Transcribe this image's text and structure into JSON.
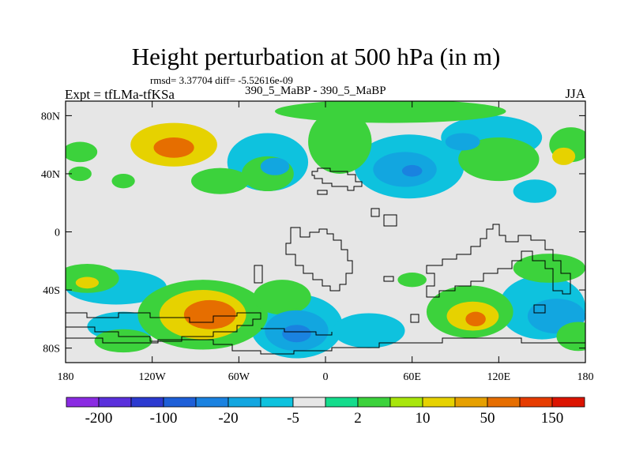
{
  "chart_data": {
    "type": "heatmap",
    "title": "Height perturbation at 500 hPa (in m)",
    "stats_line": "rmsd= 3.37704 diff= -5.52616e-09",
    "left_label": "Expt = tfLMa-tfKSa",
    "center_label": "390_5_MaBP - 390_5_MaBP",
    "right_label": "JJA",
    "x_range": [
      -180,
      180
    ],
    "y_range": [
      -90,
      90
    ],
    "x_ticks": [
      {
        "value": -180,
        "label": "180"
      },
      {
        "value": -120,
        "label": "120W"
      },
      {
        "value": -60,
        "label": "60W"
      },
      {
        "value": 0,
        "label": "0"
      },
      {
        "value": 60,
        "label": "60E"
      },
      {
        "value": 120,
        "label": "120E"
      },
      {
        "value": 180,
        "label": "180"
      }
    ],
    "y_ticks": [
      {
        "value": 80,
        "label": "80N"
      },
      {
        "value": 40,
        "label": "40N"
      },
      {
        "value": 0,
        "label": "0"
      },
      {
        "value": -40,
        "label": "40S"
      },
      {
        "value": -80,
        "label": "80S"
      }
    ],
    "colorbar": {
      "colors": [
        "#8a2be2",
        "#5a30dc",
        "#2c3ad0",
        "#1e5fd8",
        "#1a82e0",
        "#12a6e0",
        "#0ec2de",
        "#e6e6e6",
        "#14dc8c",
        "#3cd23c",
        "#a8e60c",
        "#e6d200",
        "#e6a000",
        "#e66e00",
        "#e63c00",
        "#dc1400"
      ],
      "labels": [
        {
          "boundary": 1,
          "text": "-200"
        },
        {
          "boundary": 3,
          "text": "-100"
        },
        {
          "boundary": 5,
          "text": "-20"
        },
        {
          "boundary": 7,
          "text": "-5"
        },
        {
          "boundary": 9,
          "text": "2"
        },
        {
          "boundary": 11,
          "text": "10"
        },
        {
          "boundary": 13,
          "text": "50"
        },
        {
          "boundary": 15,
          "text": "150"
        }
      ]
    },
    "field_blobs": [
      {
        "lon": -170,
        "lat": 55,
        "rlon": 12,
        "rlat": 7,
        "v": 2
      },
      {
        "lon": -170,
        "lat": 40,
        "rlon": 8,
        "rlat": 5,
        "v": 2
      },
      {
        "lon": -140,
        "lat": 35,
        "rlon": 8,
        "rlat": 5,
        "v": 2
      },
      {
        "lon": -105,
        "lat": 60,
        "rlon": 30,
        "rlat": 15,
        "v": 4
      },
      {
        "lon": -105,
        "lat": 58,
        "rlon": 14,
        "rlat": 7,
        "v": 6
      },
      {
        "lon": -73,
        "lat": 35,
        "rlon": 20,
        "rlat": 9,
        "v": 2
      },
      {
        "lon": -40,
        "lat": 40,
        "rlon": 18,
        "rlat": 12,
        "v": 2
      },
      {
        "lon": -40,
        "lat": 48,
        "rlon": 28,
        "rlat": 20,
        "v": -1
      },
      {
        "lon": -35,
        "lat": 45,
        "rlon": 10,
        "rlat": 6,
        "v": -2
      },
      {
        "lon": 10,
        "lat": 62,
        "rlon": 22,
        "rlat": 22,
        "v": 2
      },
      {
        "lon": 10,
        "lat": 58,
        "rlon": 10,
        "rlat": 10,
        "v": -1
      },
      {
        "lon": 58,
        "lat": 45,
        "rlon": 38,
        "rlat": 22,
        "v": -1
      },
      {
        "lon": 55,
        "lat": 43,
        "rlon": 22,
        "rlat": 12,
        "v": -2
      },
      {
        "lon": 60,
        "lat": 42,
        "rlon": 7,
        "rlat": 4,
        "v": -3
      },
      {
        "lon": 45,
        "lat": 83,
        "rlon": 80,
        "rlat": 8,
        "v": 2
      },
      {
        "lon": 120,
        "lat": 50,
        "rlon": 28,
        "rlat": 15,
        "v": 2
      },
      {
        "lon": 115,
        "lat": 65,
        "rlon": 35,
        "rlat": 15,
        "v": -1
      },
      {
        "lon": 95,
        "lat": 62,
        "rlon": 12,
        "rlat": 6,
        "v": -2
      },
      {
        "lon": 170,
        "lat": 60,
        "rlon": 15,
        "rlat": 12,
        "v": 2
      },
      {
        "lon": 165,
        "lat": 52,
        "rlon": 8,
        "rlat": 6,
        "v": 4
      },
      {
        "lon": 145,
        "lat": 28,
        "rlon": 15,
        "rlat": 8,
        "v": -1
      },
      {
        "lon": -165,
        "lat": -32,
        "rlon": 22,
        "rlat": 10,
        "v": 2
      },
      {
        "lon": -165,
        "lat": -35,
        "rlon": 8,
        "rlat": 4,
        "v": 4
      },
      {
        "lon": -145,
        "lat": -38,
        "rlon": 35,
        "rlat": 12,
        "v": -1
      },
      {
        "lon": -85,
        "lat": -57,
        "rlon": 45,
        "rlat": 24,
        "v": 2
      },
      {
        "lon": -85,
        "lat": -57,
        "rlon": 30,
        "rlat": 17,
        "v": 4
      },
      {
        "lon": -80,
        "lat": -57,
        "rlon": 18,
        "rlat": 10,
        "v": 6
      },
      {
        "lon": -140,
        "lat": -65,
        "rlon": 25,
        "rlat": 10,
        "v": -1
      },
      {
        "lon": -140,
        "lat": -75,
        "rlon": 20,
        "rlat": 8,
        "v": 2
      },
      {
        "lon": -30,
        "lat": -45,
        "rlon": 20,
        "rlat": 12,
        "v": 2
      },
      {
        "lon": -20,
        "lat": -65,
        "rlon": 32,
        "rlat": 22,
        "v": -1
      },
      {
        "lon": -20,
        "lat": -68,
        "rlon": 22,
        "rlat": 14,
        "v": -2
      },
      {
        "lon": -20,
        "lat": -70,
        "rlon": 10,
        "rlat": 6,
        "v": -3
      },
      {
        "lon": 30,
        "lat": -68,
        "rlon": 25,
        "rlat": 12,
        "v": -1
      },
      {
        "lon": 60,
        "lat": -33,
        "rlon": 10,
        "rlat": 5,
        "v": 2
      },
      {
        "lon": 100,
        "lat": -55,
        "rlon": 30,
        "rlat": 18,
        "v": 2
      },
      {
        "lon": 102,
        "lat": -58,
        "rlon": 18,
        "rlat": 10,
        "v": 4
      },
      {
        "lon": 104,
        "lat": -60,
        "rlon": 7,
        "rlat": 5,
        "v": 6
      },
      {
        "lon": 150,
        "lat": -52,
        "rlon": 30,
        "rlat": 22,
        "v": -1
      },
      {
        "lon": 160,
        "lat": -58,
        "rlon": 20,
        "rlat": 12,
        "v": -2
      },
      {
        "lon": 155,
        "lat": -25,
        "rlon": 25,
        "rlat": 10,
        "v": 2
      },
      {
        "lon": 175,
        "lat": -72,
        "rlon": 15,
        "rlat": 10,
        "v": 2
      }
    ]
  }
}
